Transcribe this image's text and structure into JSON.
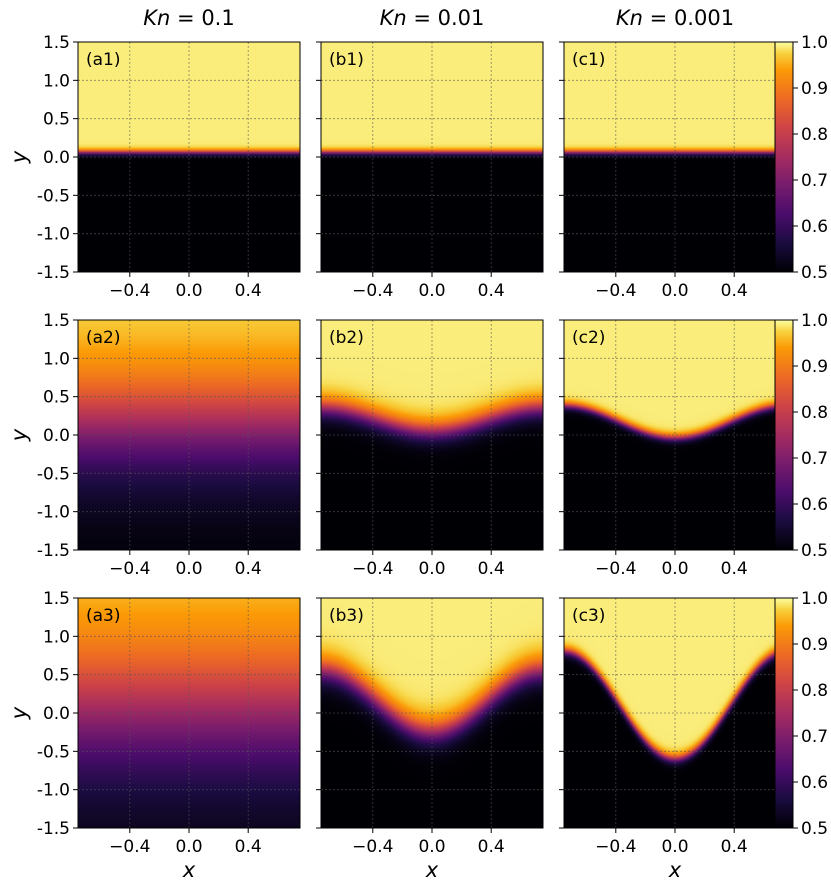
{
  "chart_data": {
    "type": "heatmap",
    "colormap": "inferno",
    "column_titles": [
      {
        "kn_symbol": "Kn",
        "rest": " = 0.1"
      },
      {
        "kn_symbol": "Kn",
        "rest": " = 0.01"
      },
      {
        "kn_symbol": "Kn",
        "rest": " = 0.001"
      }
    ],
    "xlabel": "x",
    "ylabel": "y",
    "xlim": [
      -0.75,
      0.75
    ],
    "ylim": [
      -1.5,
      1.5
    ],
    "x_ticks": [
      -0.4,
      0.0,
      0.4
    ],
    "x_tick_labels": [
      "−0.4",
      "0.0",
      "0.4"
    ],
    "y_ticks": [
      1.5,
      1.0,
      0.5,
      0.0,
      -0.5,
      -1.0,
      -1.5
    ],
    "y_tick_labels": [
      "1.5",
      "1.0",
      "0.5",
      "0.0",
      "-0.5",
      "-1.0",
      "-1.5"
    ],
    "grid": true,
    "colorbar": {
      "range": [
        0.5,
        1.0
      ],
      "ticks": [
        1.0,
        0.9,
        0.8,
        0.7,
        0.6,
        0.5
      ],
      "tick_labels": [
        "1.0",
        "0.9",
        "0.8",
        "0.7",
        "0.6",
        "0.5"
      ]
    },
    "panels": [
      {
        "label": "(a1)",
        "row": 0,
        "col": 0,
        "interface_center": 0.06,
        "amplitude": 0.0,
        "width": 0.04,
        "light_top": 0.98
      },
      {
        "label": "(b1)",
        "row": 0,
        "col": 1,
        "interface_center": 0.06,
        "amplitude": 0.0,
        "width": 0.04,
        "light_top": 0.98
      },
      {
        "label": "(c1)",
        "row": 0,
        "col": 2,
        "interface_center": 0.06,
        "amplitude": 0.0,
        "width": 0.04,
        "light_top": 0.98
      },
      {
        "label": "(a2)",
        "row": 1,
        "col": 0,
        "interface_center": 0.15,
        "amplitude": 0.0,
        "width": 0.85,
        "light_top": 0.98
      },
      {
        "label": "(b2)",
        "row": 1,
        "col": 1,
        "interface_center": 0.2,
        "amplitude": 0.3,
        "width": 0.16,
        "light_top": 0.98
      },
      {
        "label": "(c2)",
        "row": 1,
        "col": 2,
        "interface_center": 0.17,
        "amplitude": 0.42,
        "width": 0.06,
        "light_top": 0.98
      },
      {
        "label": "(a3)",
        "row": 2,
        "col": 0,
        "interface_center": 0.05,
        "amplitude": 0.0,
        "width": 1.15,
        "light_top": 0.98
      },
      {
        "label": "(b3)",
        "row": 2,
        "col": 1,
        "interface_center": 0.15,
        "amplitude": 0.8,
        "width": 0.2,
        "light_top": 0.98
      },
      {
        "label": "(c3)",
        "row": 2,
        "col": 2,
        "interface_center": 0.1,
        "amplitude": 1.4,
        "width": 0.07,
        "light_top": 0.98
      }
    ]
  }
}
